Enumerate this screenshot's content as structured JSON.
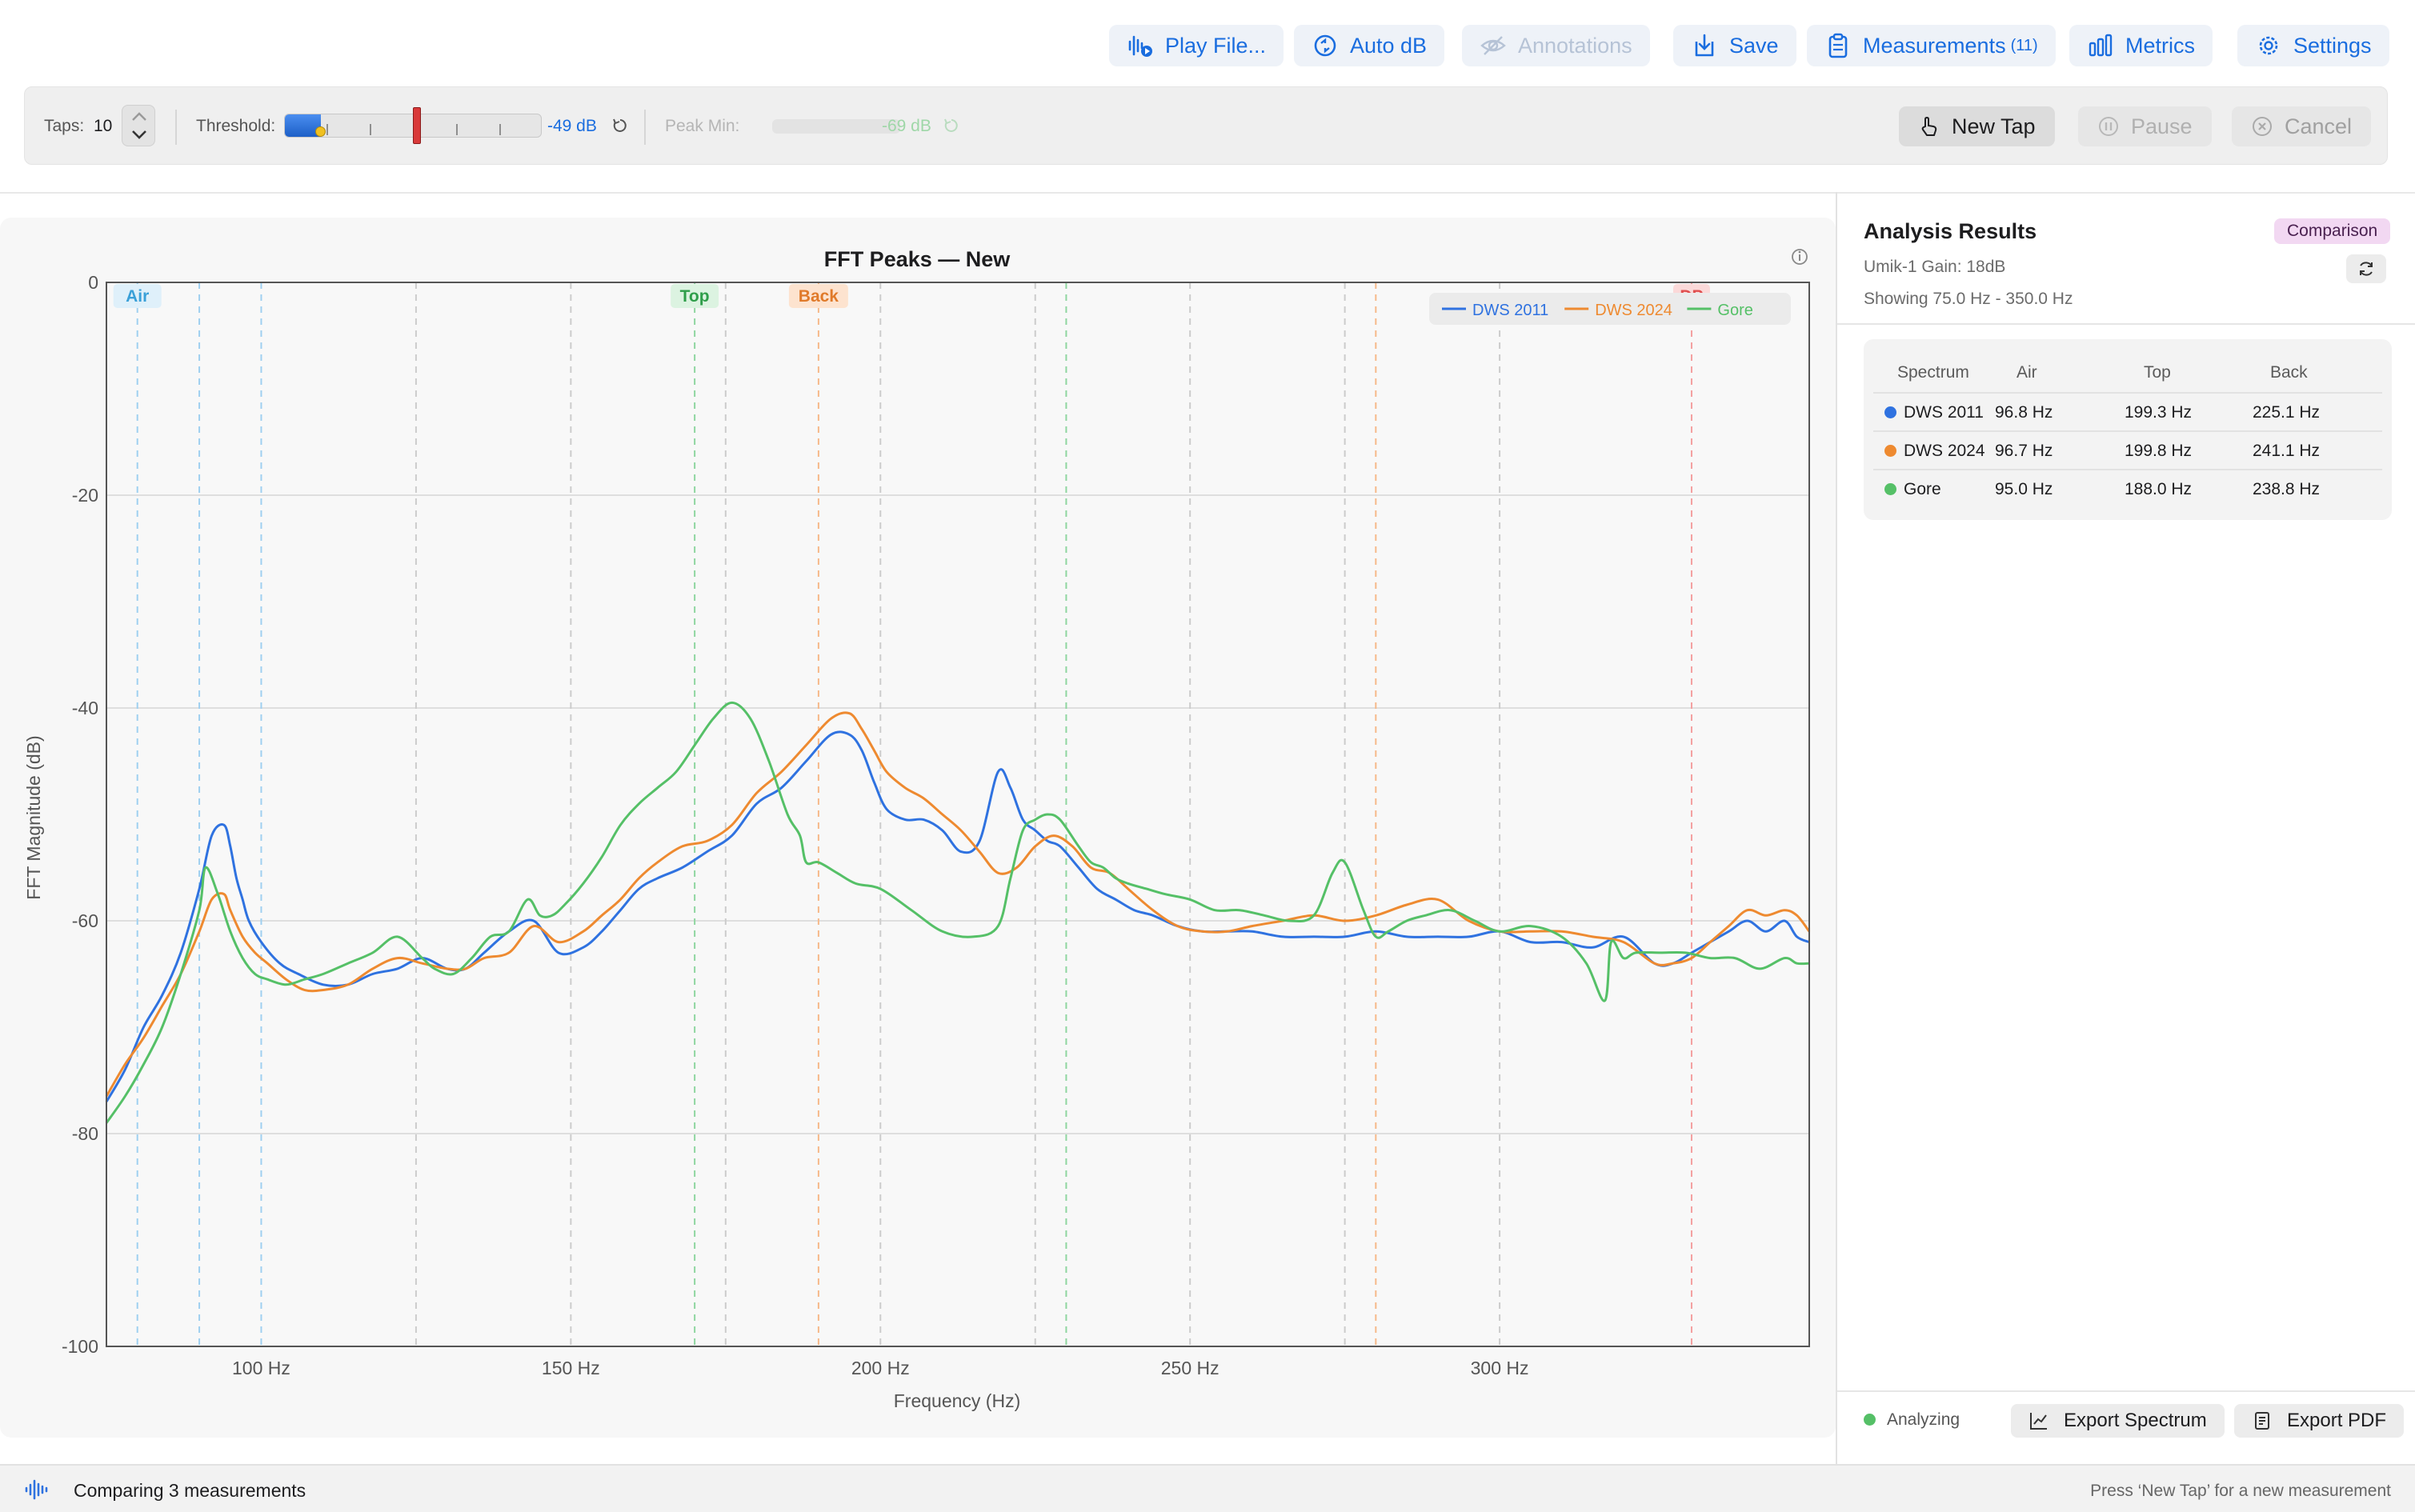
{
  "toolbar": {
    "play_file": "Play File...",
    "auto_db": "Auto dB",
    "annotations": "Annotations",
    "save": "Save",
    "measurements": "Measurements",
    "measurements_count": "(11)",
    "metrics": "Metrics",
    "settings": "Settings"
  },
  "tap_panel": {
    "taps_label": "Taps:",
    "taps_value": "10",
    "threshold_label": "Threshold:",
    "threshold_value": "-49 dB",
    "threshold_level": 0.14,
    "peak_min_label": "Peak Min:",
    "peak_min_value": "-69 dB",
    "new_tap": "New Tap",
    "pause": "Pause",
    "cancel": "Cancel"
  },
  "results": {
    "title": "Analysis Results",
    "badge": "Comparison",
    "device": "Umik-1  Gain: 18dB",
    "range": "Showing 75.0 Hz - 350.0 Hz",
    "headers": [
      "Spectrum",
      "Air",
      "Top",
      "Back"
    ],
    "rows": [
      {
        "name": "DWS 2011",
        "air": "96.8 Hz",
        "top": "199.3 Hz",
        "back": "225.1 Hz",
        "color": "#2f72e0"
      },
      {
        "name": "DWS 2024",
        "air": "96.7 Hz",
        "top": "199.8 Hz",
        "back": "241.1 Hz",
        "color": "#ee8a30"
      },
      {
        "name": "Gore",
        "air": "95.0 Hz",
        "top": "188.0 Hz",
        "back": "238.8 Hz",
        "color": "#55c067"
      }
    ],
    "status": "Analyzing",
    "export_spectrum": "Export Spectrum",
    "export_pdf": "Export PDF"
  },
  "status_bar": {
    "text": "Comparing 3 measurements",
    "hint": "Press ‘New Tap’ for a new measurement"
  },
  "chart_data": {
    "type": "line",
    "title": "FFT Peaks — New",
    "xlabel": "Frequency (Hz)",
    "ylabel": "FFT Magnitude (dB)",
    "xlim": [
      75,
      350
    ],
    "ylim": [
      -100,
      0
    ],
    "x_ticks": [
      100,
      150,
      200,
      250,
      300
    ],
    "x_tick_labels": [
      "100 Hz",
      "150 Hz",
      "200 Hz",
      "250 Hz",
      "300 Hz"
    ],
    "y_ticks": [
      0,
      -20,
      -40,
      -60,
      -80,
      -100
    ],
    "y_tick_labels": [
      "0",
      "-20",
      "-40",
      "-60",
      "-80",
      "-100"
    ],
    "grid": true,
    "legend_position": "top-right",
    "markers": [
      {
        "label": "Air",
        "x": 80,
        "color": "#9fd0f0",
        "text_color": "#3aa0d8",
        "bg": "#dff0fa"
      },
      {
        "label": "Top",
        "x": 170,
        "color": "#8fd6a0",
        "text_color": "#2f9e4a",
        "bg": "#dcf3e1"
      },
      {
        "label": "Back",
        "x": 190,
        "color": "#f6b98a",
        "text_color": "#e07a2a",
        "bg": "#fde3cf"
      },
      {
        "label": "DP",
        "x": 331,
        "color": "#f4a0a0",
        "text_color": "#e05050",
        "bg": "#fbd9d9"
      }
    ],
    "guide_lines": [
      {
        "x": 100,
        "color": "#9fd0f0"
      },
      {
        "x": 150,
        "color": "#cccccc"
      },
      {
        "x": 200,
        "color": "#cccccc"
      },
      {
        "x": 230,
        "color": "#8fd6a0"
      },
      {
        "x": 250,
        "color": "#cccccc"
      },
      {
        "x": 280,
        "color": "#f6b98a"
      },
      {
        "x": 300,
        "color": "#cccccc"
      },
      {
        "x": 125,
        "color": "#cccccc"
      },
      {
        "x": 175,
        "color": "#cccccc"
      },
      {
        "x": 275,
        "color": "#cccccc"
      },
      {
        "x": 225,
        "color": "#cccccc"
      },
      {
        "x": 90,
        "color": "#9fd0f0"
      }
    ],
    "series": [
      {
        "name": "DWS 2011",
        "color": "#2f72e0",
        "x": [
          75,
          78,
          81,
          84,
          87,
          90,
          92,
          94,
          95,
          96,
          97,
          98,
          100,
          103,
          106,
          110,
          114,
          118,
          122,
          126,
          130,
          133,
          136,
          140,
          144,
          148,
          152,
          155,
          158,
          161,
          164,
          168,
          172,
          176,
          180,
          184,
          188,
          192,
          195,
          197,
          199,
          201,
          204,
          207,
          210,
          213,
          216,
          219,
          221,
          223,
          225,
          227,
          229,
          232,
          235,
          238,
          241,
          244,
          248,
          252,
          256,
          260,
          265,
          270,
          275,
          280,
          285,
          290,
          295,
          300,
          305,
          310,
          315,
          320,
          325,
          328,
          331,
          334,
          337,
          340,
          343,
          346,
          348,
          350
        ],
        "y": [
          -77,
          -74,
          -70,
          -67,
          -63,
          -57,
          -52,
          -51,
          -53,
          -56,
          -58,
          -60,
          -62,
          -64,
          -65,
          -66,
          -66,
          -65,
          -64.5,
          -63.5,
          -64.5,
          -64.5,
          -63,
          -61,
          -60,
          -63,
          -62.5,
          -61,
          -59,
          -57,
          -56,
          -55,
          -53.5,
          -52,
          -49,
          -47.5,
          -45,
          -42.5,
          -42.5,
          -44,
          -47,
          -49.5,
          -50.5,
          -50.5,
          -51.5,
          -53.5,
          -52.5,
          -46,
          -47.5,
          -50.5,
          -51.5,
          -52.5,
          -53,
          -55,
          -57,
          -58,
          -59,
          -59.5,
          -60.5,
          -61,
          -61,
          -61,
          -61.5,
          -61.5,
          -61.5,
          -61,
          -61.5,
          -61.5,
          -61.5,
          -61,
          -62,
          -62,
          -62.5,
          -61.5,
          -64,
          -64,
          -63,
          -62,
          -61,
          -60,
          -61,
          -60,
          -61.5,
          -62
        ]
      },
      {
        "name": "DWS 2024",
        "color": "#ee8a30",
        "x": [
          75,
          78,
          81,
          84,
          87,
          90,
          92,
          94,
          95,
          97,
          99,
          101,
          104,
          107,
          110,
          114,
          118,
          122,
          126,
          130,
          133,
          136,
          140,
          144,
          148,
          152,
          155,
          158,
          161,
          164,
          168,
          172,
          176,
          180,
          184,
          188,
          192,
          195,
          197,
          199,
          201,
          204,
          207,
          210,
          213,
          216,
          219,
          222,
          225,
          228,
          231,
          234,
          237,
          240,
          244,
          248,
          252,
          256,
          260,
          265,
          270,
          275,
          280,
          285,
          290,
          295,
          300,
          305,
          310,
          315,
          320,
          325,
          328,
          331,
          334,
          337,
          340,
          343,
          346,
          348,
          350
        ],
        "y": [
          -76.5,
          -73.5,
          -71,
          -68,
          -65,
          -61,
          -58,
          -57.5,
          -59,
          -61.5,
          -63,
          -64,
          -65.5,
          -66.5,
          -66.5,
          -66,
          -64.5,
          -63.5,
          -64,
          -64.5,
          -64.5,
          -63.5,
          -63,
          -60.5,
          -62,
          -61,
          -59.5,
          -58,
          -56,
          -54.5,
          -53,
          -52.5,
          -51,
          -48,
          -46,
          -43.5,
          -41,
          -40.5,
          -42,
          -44,
          -46,
          -47.5,
          -48.5,
          -50,
          -51.5,
          -53.5,
          -55.5,
          -55,
          -53,
          -52,
          -53,
          -55,
          -55.5,
          -57,
          -59,
          -60.5,
          -61,
          -61,
          -60.5,
          -60,
          -59.5,
          -60,
          -59.5,
          -58.5,
          -58,
          -60,
          -61,
          -61,
          -61,
          -61.5,
          -62,
          -64,
          -64,
          -63.5,
          -62,
          -60.5,
          -59,
          -59.5,
          -59,
          -59.5,
          -61
        ]
      },
      {
        "name": "Gore",
        "color": "#55c067",
        "x": [
          75,
          78,
          81,
          84,
          87,
          90,
          91,
          93,
          95,
          97,
          99,
          101,
          104,
          107,
          110,
          114,
          118,
          122,
          126,
          128,
          131,
          134,
          137,
          140,
          143,
          145,
          147,
          149,
          152,
          155,
          158,
          161,
          164,
          167,
          170,
          173,
          176,
          179,
          182,
          185,
          187,
          188,
          190,
          193,
          196,
          200,
          205,
          210,
          215,
          219,
          221,
          223,
          225,
          227,
          229,
          232,
          234,
          236,
          238,
          240,
          243,
          246,
          250,
          254,
          258,
          262,
          266,
          270,
          273,
          275,
          278,
          280,
          282,
          285,
          288,
          292,
          296,
          300,
          305,
          310,
          314,
          317,
          318,
          320,
          322,
          326,
          330,
          334,
          338,
          342,
          346,
          348,
          350
        ],
        "y": [
          -79,
          -76.5,
          -73.5,
          -70,
          -65,
          -59,
          -55,
          -57.5,
          -61,
          -63.5,
          -65,
          -65.5,
          -66,
          -65.5,
          -65,
          -64,
          -63,
          -61.5,
          -63.5,
          -64.5,
          -65,
          -63.5,
          -61.5,
          -61,
          -58,
          -59.5,
          -59.5,
          -58.5,
          -56.5,
          -54,
          -51,
          -49,
          -47.5,
          -46,
          -43.5,
          -41,
          -39.5,
          -41,
          -45,
          -50,
          -52,
          -54.5,
          -54.5,
          -55.5,
          -56.5,
          -57,
          -59,
          -61,
          -61.5,
          -60.5,
          -56,
          -51.5,
          -50.5,
          -50,
          -50.5,
          -53,
          -54.5,
          -55,
          -56,
          -56.5,
          -57,
          -57.5,
          -58,
          -59,
          -59,
          -59.5,
          -60,
          -59.5,
          -55.5,
          -54.5,
          -59,
          -61.5,
          -61,
          -60,
          -59.5,
          -59,
          -60,
          -61,
          -60.5,
          -61.5,
          -64,
          -67.5,
          -62,
          -63.5,
          -63,
          -63,
          -63,
          -63.5,
          -63.5,
          -64.5,
          -63.5,
          -64,
          -64
        ]
      }
    ]
  }
}
